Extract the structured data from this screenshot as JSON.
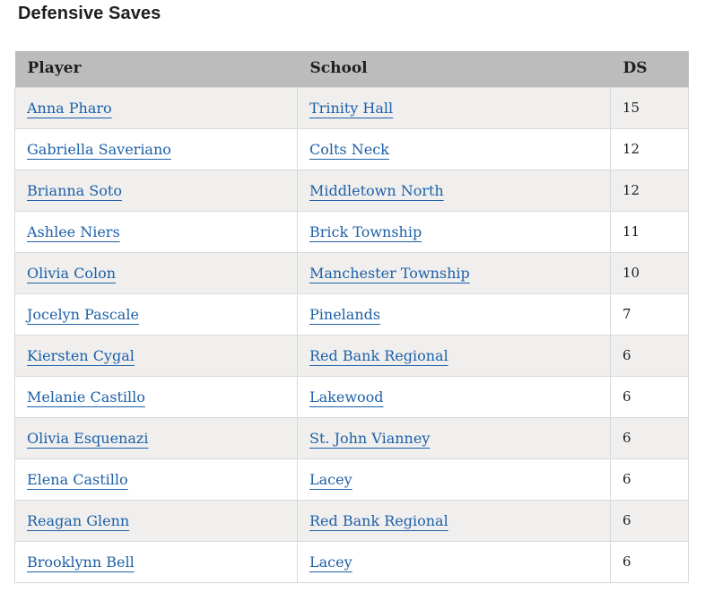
{
  "page": {
    "title": "Defensive Saves"
  },
  "table": {
    "headers": [
      "Player",
      "School",
      "DS"
    ],
    "rows": [
      {
        "player": "Anna Pharo",
        "school": "Trinity Hall",
        "ds": "15"
      },
      {
        "player": "Gabriella Saveriano",
        "school": "Colts Neck",
        "ds": "12"
      },
      {
        "player": "Brianna Soto",
        "school": "Middletown North",
        "ds": "12"
      },
      {
        "player": "Ashlee Niers",
        "school": "Brick Township",
        "ds": "11"
      },
      {
        "player": "Olivia Colon",
        "school": "Manchester Township",
        "ds": "10"
      },
      {
        "player": "Jocelyn Pascale",
        "school": "Pinelands",
        "ds": "7"
      },
      {
        "player": "Kiersten Cygal",
        "school": "Red Bank Regional",
        "ds": "6"
      },
      {
        "player": "Melanie Castillo",
        "school": "Lakewood",
        "ds": "6"
      },
      {
        "player": "Olivia Esquenazi",
        "school": "St. John Vianney",
        "ds": "6"
      },
      {
        "player": "Elena Castillo",
        "school": "Lacey",
        "ds": "6"
      },
      {
        "player": "Reagan Glenn",
        "school": "Red Bank Regional",
        "ds": "6"
      },
      {
        "player": "Brooklynn Bell",
        "school": "Lacey",
        "ds": "6"
      }
    ]
  },
  "colors": {
    "link": "#1d60a8",
    "header_bg": "#bcbcbc",
    "stripe_bg": "#f0efee",
    "border": "#d9d9d9",
    "text": "#1f1f1f"
  }
}
